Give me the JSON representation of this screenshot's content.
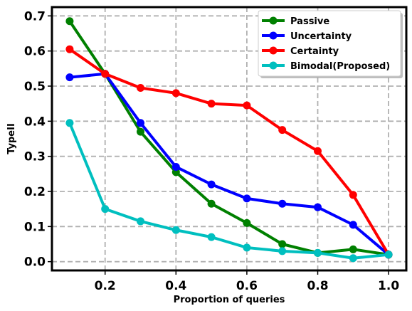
{
  "chart_data": {
    "type": "line",
    "title": "",
    "xlabel": "Proportion of queries",
    "ylabel": "TypeII",
    "x": [
      0.1,
      0.2,
      0.3,
      0.4,
      0.5,
      0.6,
      0.7,
      0.8,
      0.9,
      1.0
    ],
    "xlim": [
      0.05,
      1.05
    ],
    "ylim": [
      -0.025,
      0.725
    ],
    "xticks": [
      0.2,
      0.4,
      0.6,
      0.8,
      1.0
    ],
    "xtick_labels": [
      "0.2",
      "0.4",
      "0.6",
      "0.8",
      "1.0"
    ],
    "yticks": [
      0.0,
      0.1,
      0.2,
      0.3,
      0.4,
      0.5,
      0.6,
      0.7
    ],
    "ytick_labels": [
      "0.0",
      "0.1",
      "0.2",
      "0.3",
      "0.4",
      "0.5",
      "0.6",
      "0.7"
    ],
    "grid": true,
    "legend_position": "top-right",
    "series": [
      {
        "name": "Passive",
        "color": "#008000",
        "values": [
          0.685,
          0.535,
          0.37,
          0.255,
          0.165,
          0.11,
          0.05,
          0.025,
          0.035,
          0.02
        ]
      },
      {
        "name": "Uncertainty",
        "color": "#0000ff",
        "values": [
          0.525,
          0.535,
          0.395,
          0.27,
          0.22,
          0.18,
          0.165,
          0.155,
          0.105,
          0.02
        ]
      },
      {
        "name": "Certainty",
        "color": "#ff0000",
        "values": [
          0.605,
          0.535,
          0.495,
          0.48,
          0.45,
          0.445,
          0.375,
          0.315,
          0.19,
          0.02
        ]
      },
      {
        "name": "Bimodal(Proposed)",
        "color": "#00bfbf",
        "values": [
          0.395,
          0.15,
          0.115,
          0.09,
          0.07,
          0.04,
          0.03,
          0.025,
          0.01,
          0.02
        ]
      }
    ]
  }
}
